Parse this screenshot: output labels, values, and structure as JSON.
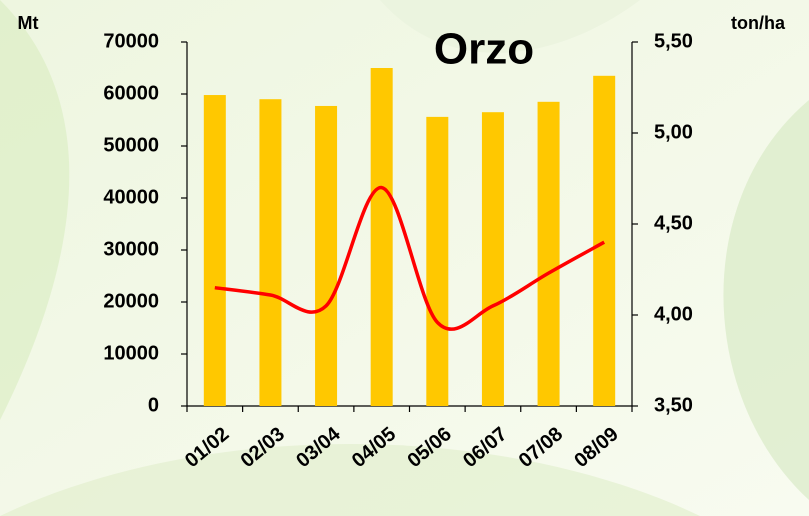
{
  "chart_data": {
    "type": "bar-line",
    "title": "Orzo",
    "y_label": "Mt",
    "y2_label": "ton/ha",
    "categories": [
      "01/02",
      "02/03",
      "03/04",
      "04/05",
      "05/06",
      "06/07",
      "07/08",
      "08/09"
    ],
    "series": [
      {
        "type": "bar",
        "color": "#ffc800",
        "values": [
          59800,
          59000,
          57700,
          65000,
          55600,
          56500,
          58500,
          63500
        ]
      },
      {
        "type": "line",
        "axis": "y2",
        "color": "#ff0000",
        "values": [
          4.15,
          4.11,
          4.05,
          4.7,
          3.96,
          4.05,
          4.23,
          4.4
        ]
      }
    ],
    "ylim": [
      0,
      70000
    ],
    "yticks": [
      0,
      10000,
      20000,
      30000,
      40000,
      50000,
      60000,
      70000
    ],
    "y2lim": [
      3.5,
      5.5
    ],
    "y2ticks": [
      {
        "value": 3.5,
        "label": "3,50"
      },
      {
        "value": 4,
        "label": "4,00"
      },
      {
        "value": 4.5,
        "label": "4,50"
      },
      {
        "value": 5,
        "label": "5,00"
      },
      {
        "value": 5.5,
        "label": "5,50"
      }
    ]
  }
}
